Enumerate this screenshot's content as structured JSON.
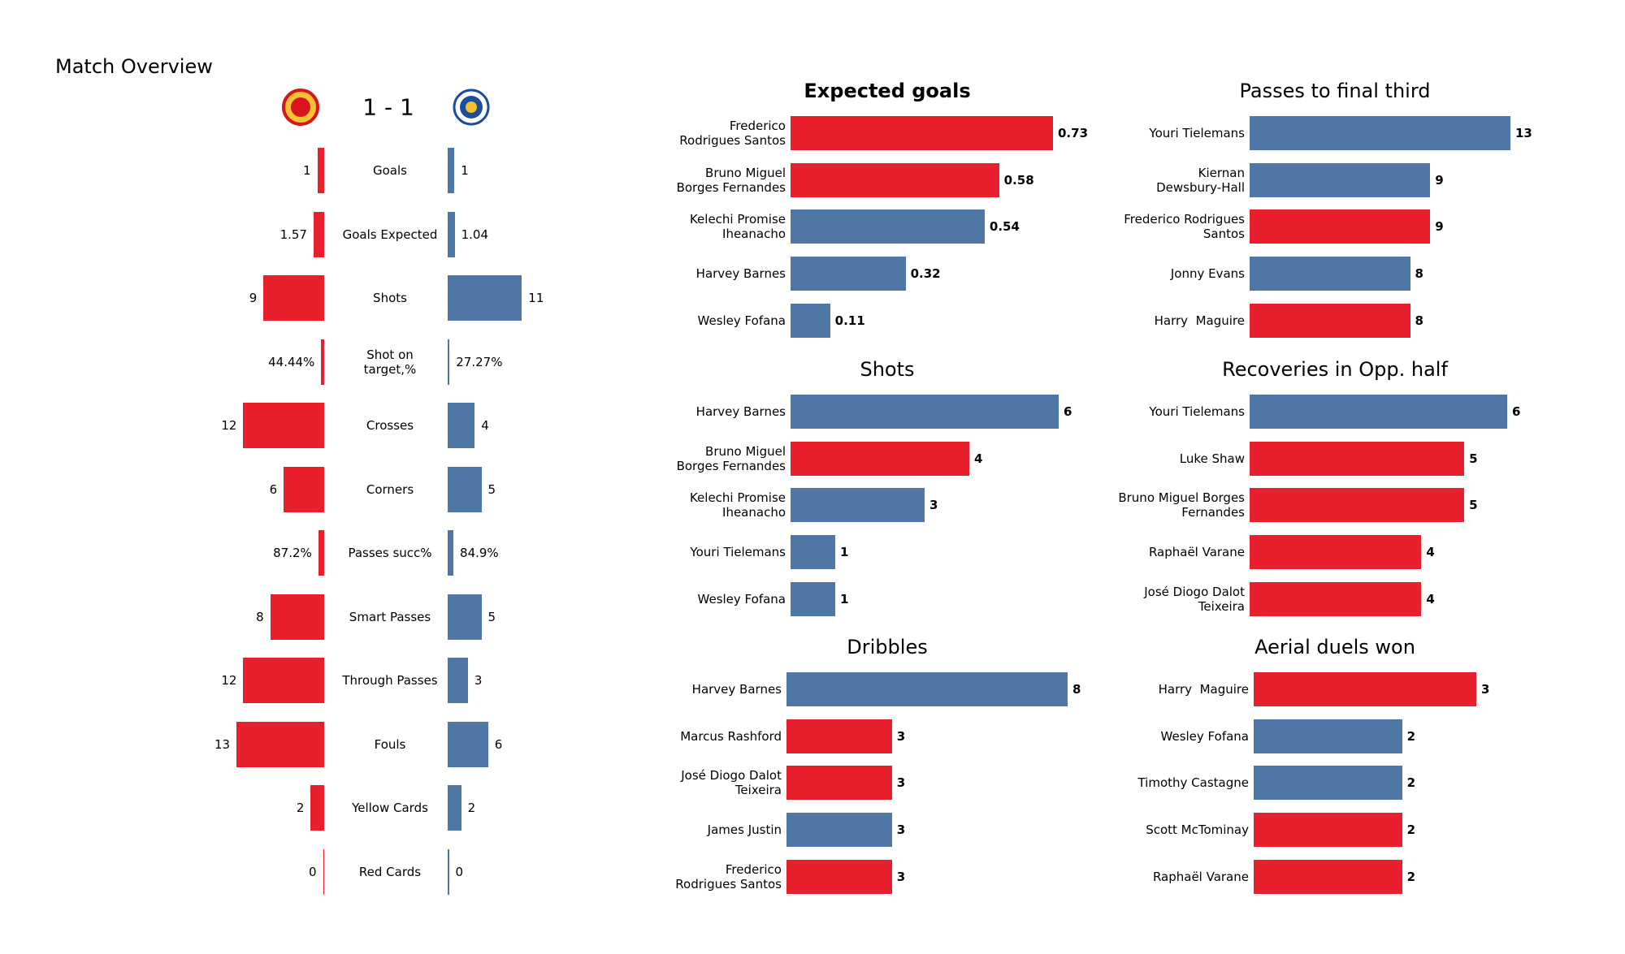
{
  "header": {
    "title": "Match Overview",
    "score": "1 - 1"
  },
  "chart_data": [
    {
      "type": "comparison",
      "categories": [
        "Goals",
        "Goals Expected",
        "Shots",
        "Shot on\ntarget,%",
        "Crosses",
        "Corners",
        "Passes succ%",
        "Smart Passes",
        "Through Passes",
        "Fouls",
        "Yellow Cards",
        "Red Cards"
      ],
      "series": [
        {
          "color": "#e8202e",
          "values": [
            1,
            1.57,
            9,
            0.4444,
            12,
            6,
            0.872,
            8,
            12,
            13,
            2,
            0
          ],
          "value_labels": [
            "1",
            "1.57",
            "9",
            "44.44%",
            "12",
            "6",
            "87.2%",
            "8",
            "12",
            "13",
            "2",
            "0"
          ]
        },
        {
          "color": "#4e77a5",
          "values": [
            1,
            1.04,
            11,
            0.2727,
            4,
            5,
            0.849,
            5,
            3,
            6,
            2,
            0
          ],
          "value_labels": [
            "1",
            "1.04",
            "11",
            "27.27%",
            "4",
            "5",
            "84.9%",
            "5",
            "3",
            "6",
            "2",
            "0"
          ]
        }
      ]
    },
    {
      "type": "hbar",
      "title": "Expected goals",
      "categories": [
        "Frederico\nRodrigues Santos",
        "Bruno Miguel\nBorges Fernandes",
        "Kelechi Promise\nIheanacho",
        "Harvey Barnes",
        "Wesley Fofana"
      ],
      "values": [
        0.73,
        0.58,
        0.54,
        0.32,
        0.11
      ],
      "colors": [
        "#e8202e",
        "#e8202e",
        "#4e77a5",
        "#4e77a5",
        "#4e77a5"
      ]
    },
    {
      "type": "hbar",
      "title": "Passes to final third",
      "categories": [
        "Youri Tielemans",
        "Kiernan\nDewsbury-Hall",
        "Frederico Rodrigues\nSantos",
        "Jonny Evans",
        "Harry  Maguire"
      ],
      "values": [
        13,
        9,
        9,
        8,
        8
      ],
      "colors": [
        "#4e77a5",
        "#4e77a5",
        "#e8202e",
        "#4e77a5",
        "#e8202e"
      ]
    },
    {
      "type": "hbar",
      "title": "Shots",
      "categories": [
        "Harvey Barnes",
        "Bruno Miguel\nBorges Fernandes",
        "Kelechi Promise\nIheanacho",
        "Youri Tielemans",
        "Wesley Fofana"
      ],
      "values": [
        6,
        4,
        3,
        1,
        1
      ],
      "colors": [
        "#4e77a5",
        "#e8202e",
        "#4e77a5",
        "#4e77a5",
        "#4e77a5"
      ]
    },
    {
      "type": "hbar",
      "title": "Recoveries in Opp. half",
      "categories": [
        "Youri Tielemans",
        "Luke Shaw",
        "Bruno Miguel Borges\nFernandes",
        "Raphaël Varane",
        "José Diogo Dalot\nTeixeira"
      ],
      "values": [
        6,
        5,
        5,
        4,
        4
      ],
      "colors": [
        "#4e77a5",
        "#e8202e",
        "#e8202e",
        "#e8202e",
        "#e8202e"
      ]
    },
    {
      "type": "hbar",
      "title": "Dribbles",
      "categories": [
        "Harvey Barnes",
        "Marcus Rashford",
        "José Diogo Dalot\nTeixeira",
        "James Justin",
        "Frederico\nRodrigues Santos"
      ],
      "values": [
        8,
        3,
        3,
        3,
        3
      ],
      "colors": [
        "#4e77a5",
        "#e8202e",
        "#e8202e",
        "#4e77a5",
        "#e8202e"
      ]
    },
    {
      "type": "hbar",
      "title": "Aerial duels won",
      "categories": [
        "Harry  Maguire",
        "Wesley Fofana",
        "Timothy Castagne",
        "Scott McTominay",
        "Raphaël Varane"
      ],
      "values": [
        3,
        2,
        2,
        2,
        2
      ],
      "colors": [
        "#e8202e",
        "#4e77a5",
        "#4e77a5",
        "#e8202e",
        "#e8202e"
      ]
    }
  ]
}
